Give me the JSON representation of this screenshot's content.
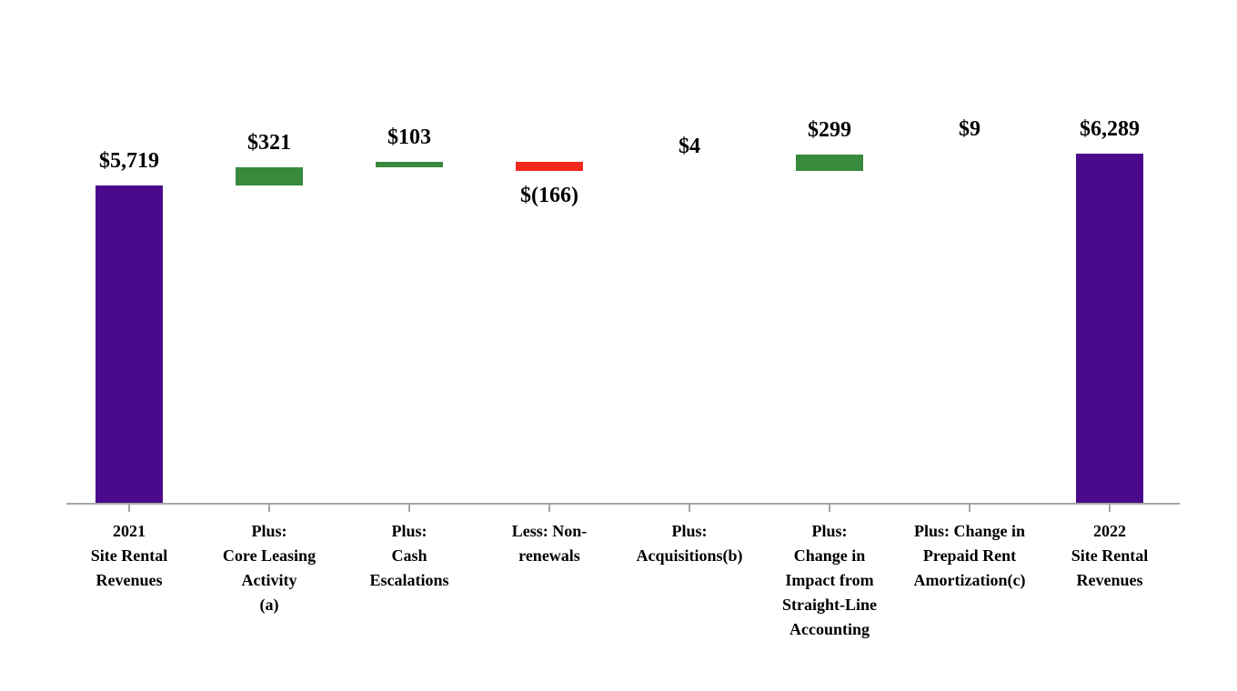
{
  "chart_data": {
    "type": "bar",
    "subtype": "waterfall",
    "title": "",
    "xlabel": "",
    "ylabel": "",
    "ylim": [
      0,
      6289
    ],
    "grid": false,
    "legend_position": "none",
    "currency_unit": "$",
    "categories": [
      "2021\nSite Rental\nRevenues",
      "Plus:\nCore Leasing\nActivity\n(a)",
      "Plus:\nCash\nEscalations",
      "Less: Non-\nrenewals",
      "Plus:\nAcquisitions(b)",
      "Plus:\nChange in\nImpact from\nStraight-Line\nAccounting",
      "Plus: Change in\nPrepaid Rent\nAmortization(c)",
      "2022\nSite Rental\nRevenues"
    ],
    "bars": [
      {
        "label": "$5,719",
        "value": 5719,
        "kind": "total"
      },
      {
        "label": "$321",
        "value": 321,
        "kind": "increase"
      },
      {
        "label": "$103",
        "value": 103,
        "kind": "increase"
      },
      {
        "label": "$(166)",
        "value": -166,
        "kind": "decrease"
      },
      {
        "label": "$4",
        "value": 4,
        "kind": "increase"
      },
      {
        "label": "$299",
        "value": 299,
        "kind": "increase"
      },
      {
        "label": "$9",
        "value": 9,
        "kind": "increase"
      },
      {
        "label": "$6,289",
        "value": 6289,
        "kind": "total"
      }
    ],
    "colors": {
      "total": "#4B0A8C",
      "increase": "#388A3D",
      "decrease": "#F3291D",
      "axis": "#A6A6A6",
      "text": "#000000",
      "background": "#FFFFFF"
    }
  }
}
